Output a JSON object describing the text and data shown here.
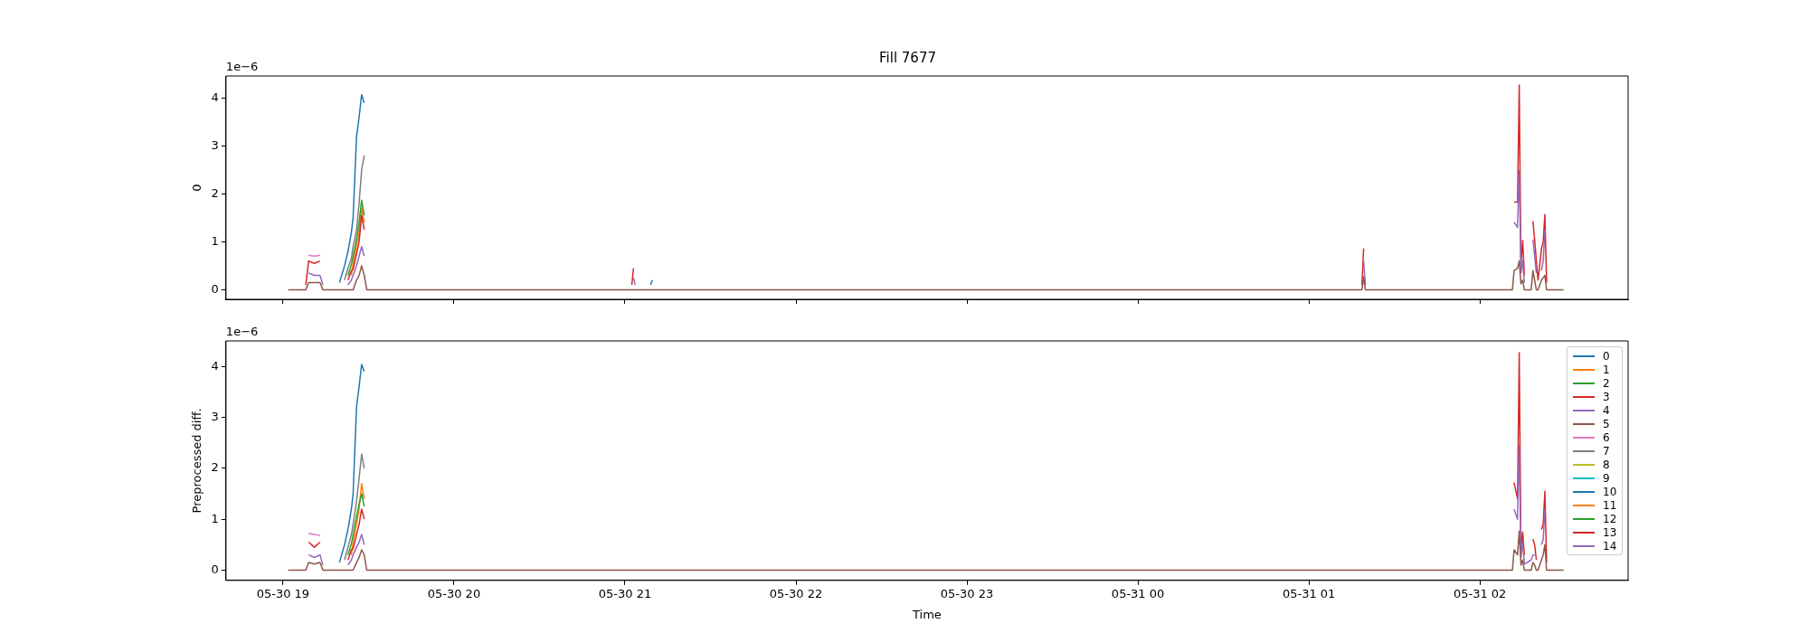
{
  "chart_data": [
    {
      "type": "line",
      "title": "Fill 7677",
      "ylabel": "0",
      "annotations": [
        "1e−6"
      ],
      "tick_labels": "y",
      "x": [
        "--05-30T19:01:48",
        "--05-30T19:08:00",
        "--05-30T19:09:00",
        "--05-30T19:11:00",
        "--05-30T19:13:00",
        "--05-30T19:14:00",
        "--05-30T19:18:00",
        "--05-30T19:19:48",
        "--05-30T19:21:36",
        "--05-30T19:22:48",
        "--05-30T19:24:00",
        "--05-30T19:24:36",
        "--05-30T19:25:48",
        "--05-30T19:26:42",
        "--05-30T19:27:36",
        "--05-30T19:28:30",
        "--05-30T19:29:24",
        "--05-30T19:30:00",
        "--05-30T21:02:24",
        "--05-30T21:03:00",
        "--05-30T21:03:36",
        "--05-30T21:09:00",
        "--05-30T21:09:36",
        "--05-30T21:10:12",
        "--05-31T01:18:36",
        "--05-31T01:19:12",
        "--05-31T01:19:48",
        "--05-31T02:11:24",
        "--05-31T02:12:00",
        "--05-31T02:13:12",
        "--05-31T02:13:48",
        "--05-31T02:14:24",
        "--05-31T02:15:00",
        "--05-31T02:15:36",
        "--05-31T02:18:00",
        "--05-31T02:18:36",
        "--05-31T02:19:12",
        "--05-31T02:19:48",
        "--05-31T02:20:24",
        "--05-31T02:21:36",
        "--05-31T02:22:12",
        "--05-31T02:22:48",
        "--05-31T02:23:24",
        "--05-31T02:29:24"
      ],
      "xlim": [
        "--05-30T18:40",
        "--05-31T02:52"
      ],
      "xticks": [
        {
          "value": "--05-30T19:00",
          "label": null
        },
        {
          "value": "--05-30T20:00",
          "label": null
        },
        {
          "value": "--05-30T21:00",
          "label": null
        },
        {
          "value": "--05-30T22:00",
          "label": null
        },
        {
          "value": "--05-30T23:00",
          "label": null
        },
        {
          "value": "--05-31T00:00",
          "label": null
        },
        {
          "value": "--05-31T01:00",
          "label": null
        },
        {
          "value": "--05-31T02:00",
          "label": null
        }
      ],
      "ylim": [
        -0.2,
        4.46
      ],
      "yticks": [
        0,
        1,
        2,
        3,
        4
      ],
      "series": [
        {
          "color": "#1f77b4",
          "values": [
            null,
            null,
            null,
            null,
            null,
            null,
            null,
            0.15,
            0.5,
            0.8,
            1.2,
            1.5,
            3.2,
            3.6,
            4.07,
            3.9,
            null,
            null,
            null,
            null,
            null,
            0.1,
            0.2,
            null,
            null,
            null,
            null,
            null,
            null,
            null,
            null,
            null,
            null,
            null,
            null,
            null,
            null,
            null,
            null,
            null,
            null,
            null,
            null,
            null
          ]
        },
        {
          "color": "#ff7f0e",
          "values": [
            null,
            null,
            null,
            null,
            null,
            null,
            null,
            null,
            null,
            null,
            0.3,
            0.55,
            0.9,
            1.2,
            1.7,
            1.4,
            null,
            null,
            null,
            null,
            null,
            null,
            null,
            null,
            null,
            null,
            null,
            null,
            null,
            null,
            null,
            null,
            null,
            null,
            null,
            null,
            null,
            null,
            null,
            null,
            null,
            null,
            null,
            null
          ]
        },
        {
          "color": "#2ca02c",
          "values": [
            null,
            null,
            null,
            null,
            null,
            null,
            null,
            null,
            null,
            0.3,
            0.52,
            0.7,
            1.05,
            1.4,
            1.87,
            1.55,
            null,
            null,
            null,
            null,
            null,
            null,
            null,
            null,
            null,
            null,
            null,
            null,
            null,
            null,
            null,
            null,
            null,
            null,
            null,
            null,
            null,
            null,
            null,
            null,
            null,
            null,
            null,
            null
          ]
        },
        {
          "color": "#d62728",
          "values": [
            null,
            0.1,
            0.6,
            0.55,
            0.6,
            null,
            null,
            null,
            null,
            0.2,
            0.4,
            0.42,
            0.75,
            1.0,
            1.55,
            1.25,
            null,
            null,
            0.1,
            0.45,
            null,
            null,
            null,
            null,
            0.1,
            0.86,
            null,
            null,
            1.83,
            1.83,
            4.27,
            0.5,
            1.03,
            0.3,
            null,
            1.43,
            1.05,
            0.6,
            0.2,
            0.85,
            1.0,
            1.57,
            0.15,
            null
          ]
        },
        {
          "color": "#9467bd",
          "values": [
            null,
            null,
            0.35,
            0.3,
            0.3,
            0.1,
            null,
            null,
            null,
            0.1,
            0.2,
            0.3,
            0.5,
            0.7,
            0.9,
            0.7,
            null,
            null,
            null,
            0.25,
            0.1,
            null,
            null,
            null,
            null,
            0.59,
            0.1,
            null,
            1.41,
            1.3,
            2.48,
            0.35,
            0.6,
            0.15,
            null,
            1.05,
            0.7,
            0.35,
            null,
            0.4,
            0.6,
            1.24,
            null,
            null
          ]
        },
        {
          "color": "#8c564b",
          "values": [
            0,
            0,
            0.15,
            0.15,
            0.15,
            0,
            0,
            0,
            0,
            0,
            0,
            0,
            0.2,
            0.3,
            0.5,
            0.3,
            0,
            0,
            0,
            0,
            0,
            0,
            0,
            0,
            0,
            0.27,
            0,
            0,
            0.4,
            0.45,
            0.6,
            0.12,
            0.2,
            0,
            0,
            0.4,
            0.2,
            0,
            0,
            0.2,
            0.25,
            0.3,
            0,
            0
          ]
        },
        {
          "color": "#e377c2",
          "values": [
            null,
            null,
            0.72,
            0.7,
            0.72,
            null,
            null,
            null,
            null,
            null,
            null,
            null,
            null,
            null,
            null,
            null,
            null,
            null,
            null,
            null,
            null,
            null,
            null,
            null,
            null,
            null,
            null,
            null,
            null,
            null,
            null,
            null,
            null,
            null,
            null,
            null,
            null,
            null,
            null,
            null,
            null,
            null,
            null,
            null
          ]
        },
        {
          "color": "#7f7f7f",
          "values": [
            null,
            null,
            null,
            null,
            null,
            null,
            null,
            null,
            0.2,
            0.45,
            0.65,
            0.9,
            1.25,
            1.8,
            2.5,
            2.8,
            null,
            null,
            null,
            null,
            null,
            null,
            null,
            null,
            null,
            null,
            null,
            null,
            null,
            null,
            null,
            null,
            null,
            null,
            null,
            null,
            null,
            null,
            null,
            null,
            null,
            null,
            null,
            null
          ]
        },
        {
          "color": "#bcbd22",
          "values": [
            null,
            null,
            null,
            null,
            null,
            null,
            null,
            null,
            null,
            null,
            null,
            null,
            null,
            null,
            null,
            null,
            null,
            null,
            null,
            null,
            null,
            null,
            null,
            null,
            null,
            null,
            null,
            null,
            null,
            null,
            null,
            null,
            null,
            null,
            null,
            null,
            null,
            null,
            null,
            null,
            null,
            null,
            null,
            null
          ]
        },
        {
          "color": "#17becf",
          "values": [
            null,
            null,
            null,
            null,
            null,
            null,
            null,
            null,
            null,
            null,
            null,
            null,
            null,
            null,
            null,
            null,
            null,
            null,
            null,
            null,
            null,
            null,
            null,
            null,
            null,
            null,
            null,
            null,
            null,
            null,
            null,
            null,
            null,
            null,
            null,
            null,
            null,
            null,
            null,
            null,
            null,
            null,
            null,
            null
          ]
        },
        {
          "color": "#1f77b4",
          "values": [
            null,
            null,
            null,
            null,
            null,
            null,
            null,
            null,
            null,
            null,
            null,
            null,
            null,
            null,
            null,
            null,
            null,
            null,
            null,
            null,
            null,
            null,
            null,
            null,
            null,
            null,
            null,
            null,
            null,
            null,
            null,
            null,
            null,
            null,
            null,
            null,
            null,
            null,
            null,
            null,
            null,
            null,
            null,
            null
          ]
        },
        {
          "color": "#ff7f0e",
          "values": [
            null,
            null,
            null,
            null,
            null,
            null,
            null,
            null,
            null,
            null,
            null,
            null,
            null,
            null,
            null,
            null,
            null,
            null,
            null,
            null,
            null,
            null,
            null,
            null,
            null,
            null,
            null,
            null,
            null,
            null,
            null,
            null,
            null,
            null,
            null,
            null,
            null,
            null,
            null,
            null,
            null,
            null,
            null,
            null
          ]
        },
        {
          "color": "#2ca02c",
          "values": [
            null,
            null,
            null,
            null,
            null,
            null,
            null,
            null,
            null,
            null,
            null,
            null,
            null,
            null,
            null,
            null,
            null,
            null,
            null,
            null,
            null,
            null,
            null,
            null,
            null,
            null,
            null,
            null,
            null,
            null,
            null,
            null,
            null,
            null,
            null,
            null,
            null,
            null,
            null,
            null,
            null,
            null,
            null,
            null
          ]
        },
        {
          "color": "#d62728",
          "values": [
            null,
            null,
            null,
            null,
            null,
            null,
            null,
            null,
            null,
            null,
            null,
            null,
            null,
            null,
            null,
            null,
            null,
            null,
            null,
            null,
            null,
            null,
            null,
            null,
            null,
            null,
            null,
            null,
            null,
            null,
            null,
            null,
            null,
            null,
            null,
            null,
            null,
            null,
            null,
            null,
            null,
            null,
            null,
            null
          ]
        },
        {
          "color": "#9467bd",
          "values": [
            null,
            null,
            null,
            null,
            null,
            null,
            null,
            null,
            null,
            null,
            null,
            null,
            null,
            null,
            null,
            null,
            null,
            null,
            null,
            null,
            null,
            null,
            null,
            null,
            null,
            null,
            null,
            null,
            null,
            null,
            null,
            null,
            null,
            null,
            null,
            null,
            null,
            null,
            null,
            null,
            null,
            null,
            null,
            null
          ]
        }
      ]
    },
    {
      "type": "line",
      "xlabel": "Time",
      "ylabel": "Preprocessed diff.",
      "annotations": [
        "1e−6"
      ],
      "legend": "top right",
      "x": [
        "--05-30T19:01:48",
        "--05-30T19:08:00",
        "--05-30T19:09:00",
        "--05-30T19:11:00",
        "--05-30T19:13:00",
        "--05-30T19:14:00",
        "--05-30T19:18:00",
        "--05-30T19:19:48",
        "--05-30T19:21:36",
        "--05-30T19:22:48",
        "--05-30T19:24:00",
        "--05-30T19:24:36",
        "--05-30T19:25:48",
        "--05-30T19:26:42",
        "--05-30T19:27:36",
        "--05-30T19:28:30",
        "--05-30T19:29:24",
        "--05-30T19:30:00",
        "--05-30T21:02:24",
        "--05-30T21:03:00",
        "--05-30T21:03:36",
        "--05-30T21:09:00",
        "--05-30T21:09:36",
        "--05-30T21:10:12",
        "--05-31T01:18:36",
        "--05-31T01:19:12",
        "--05-31T01:19:48",
        "--05-31T02:11:24",
        "--05-31T02:12:00",
        "--05-31T02:13:12",
        "--05-31T02:13:48",
        "--05-31T02:14:24",
        "--05-31T02:15:00",
        "--05-31T02:15:36",
        "--05-31T02:18:00",
        "--05-31T02:18:36",
        "--05-31T02:19:12",
        "--05-31T02:19:48",
        "--05-31T02:20:24",
        "--05-31T02:21:36",
        "--05-31T02:22:12",
        "--05-31T02:22:48",
        "--05-31T02:23:24",
        "--05-31T02:29:24"
      ],
      "xlim": [
        "--05-30T18:40",
        "--05-31T02:52"
      ],
      "xticks": [
        {
          "value": "--05-30T19:00",
          "label": "05-30 19"
        },
        {
          "value": "--05-30T20:00",
          "label": "05-30 20"
        },
        {
          "value": "--05-30T21:00",
          "label": "05-30 21"
        },
        {
          "value": "--05-30T22:00",
          "label": "05-30 22"
        },
        {
          "value": "--05-30T23:00",
          "label": "05-30 23"
        },
        {
          "value": "--05-31T00:00",
          "label": "05-31 00"
        },
        {
          "value": "--05-31T01:00",
          "label": "05-31 01"
        },
        {
          "value": "--05-31T02:00",
          "label": "05-31 02"
        }
      ],
      "ylim": [
        -0.2,
        4.5
      ],
      "yticks": [
        0,
        1,
        2,
        3,
        4
      ],
      "series": [
        {
          "name": "0",
          "color": "#1f77b4",
          "values": [
            null,
            null,
            null,
            null,
            null,
            null,
            null,
            0.15,
            0.5,
            0.8,
            1.2,
            1.5,
            3.2,
            3.6,
            4.04,
            3.9,
            null,
            null,
            null,
            null,
            null,
            null,
            null,
            null,
            null,
            null,
            null,
            null,
            null,
            null,
            null,
            null,
            null,
            null,
            null,
            null,
            null,
            null,
            null,
            null,
            null,
            null,
            null,
            null
          ]
        },
        {
          "name": "1",
          "color": "#ff7f0e",
          "values": [
            null,
            null,
            null,
            null,
            null,
            null,
            null,
            null,
            null,
            null,
            0.3,
            0.55,
            0.9,
            1.2,
            1.7,
            1.4,
            null,
            null,
            null,
            null,
            null,
            null,
            null,
            null,
            null,
            null,
            null,
            null,
            null,
            null,
            null,
            null,
            null,
            null,
            null,
            null,
            null,
            null,
            null,
            null,
            null,
            null,
            null,
            null
          ]
        },
        {
          "name": "2",
          "color": "#2ca02c",
          "values": [
            null,
            null,
            null,
            null,
            null,
            null,
            null,
            null,
            null,
            0.3,
            0.52,
            0.7,
            1.05,
            1.3,
            1.5,
            1.25,
            null,
            null,
            null,
            null,
            null,
            null,
            null,
            null,
            null,
            null,
            null,
            null,
            null,
            null,
            null,
            null,
            null,
            null,
            null,
            null,
            null,
            null,
            null,
            null,
            null,
            null,
            null,
            null
          ]
        },
        {
          "name": "3",
          "color": "#d62728",
          "values": [
            null,
            null,
            0.55,
            0.45,
            0.55,
            null,
            null,
            null,
            null,
            0.2,
            0.4,
            0.42,
            0.7,
            0.9,
            1.2,
            1.0,
            null,
            null,
            null,
            null,
            null,
            null,
            null,
            null,
            null,
            null,
            null,
            null,
            1.72,
            1.4,
            4.27,
            0.4,
            0.75,
            0.3,
            null,
            0.61,
            0.5,
            0.2,
            null,
            0.8,
            0.9,
            1.55,
            0.15,
            null
          ]
        },
        {
          "name": "4",
          "color": "#9467bd",
          "values": [
            null,
            null,
            0.3,
            0.25,
            0.3,
            0.1,
            null,
            null,
            null,
            0.1,
            0.2,
            0.3,
            0.45,
            0.55,
            0.7,
            0.5,
            null,
            null,
            null,
            null,
            null,
            null,
            null,
            null,
            null,
            null,
            null,
            null,
            1.2,
            1.0,
            2.45,
            0.25,
            0.55,
            0.12,
            0.2,
            0.3,
            0.3,
            null,
            null,
            0.5,
            0.6,
            1.2,
            null,
            null
          ]
        },
        {
          "name": "5",
          "color": "#8c564b",
          "values": [
            0,
            0,
            0.15,
            0.12,
            0.15,
            0,
            0,
            0,
            0,
            0,
            0,
            0,
            0.15,
            0.25,
            0.4,
            0.3,
            0,
            0,
            0,
            0,
            0,
            0,
            0,
            0,
            0,
            0,
            0,
            0,
            0.4,
            0.3,
            0.77,
            0.1,
            0.2,
            0,
            0,
            0.15,
            0.1,
            0,
            0,
            0.2,
            0.3,
            0.5,
            0,
            0
          ]
        },
        {
          "name": "6",
          "color": "#e377c2",
          "values": [
            null,
            null,
            0.72,
            0.7,
            0.68,
            null,
            null,
            null,
            null,
            null,
            null,
            null,
            null,
            null,
            null,
            null,
            null,
            null,
            null,
            null,
            null,
            null,
            null,
            null,
            null,
            null,
            null,
            null,
            null,
            null,
            null,
            null,
            null,
            null,
            null,
            null,
            null,
            null,
            null,
            null,
            null,
            null,
            null,
            null
          ]
        },
        {
          "name": "7",
          "color": "#7f7f7f",
          "values": [
            null,
            null,
            null,
            null,
            null,
            null,
            null,
            null,
            0.2,
            0.45,
            0.7,
            0.9,
            1.35,
            1.8,
            2.28,
            2.0,
            null,
            null,
            null,
            null,
            null,
            null,
            null,
            null,
            null,
            null,
            null,
            null,
            null,
            null,
            null,
            null,
            null,
            null,
            null,
            null,
            null,
            null,
            null,
            null,
            null,
            null,
            null,
            null
          ]
        },
        {
          "name": "8",
          "color": "#bcbd22",
          "values": [
            null,
            null,
            null,
            null,
            null,
            null,
            null,
            null,
            null,
            null,
            null,
            null,
            null,
            null,
            null,
            null,
            null,
            null,
            null,
            null,
            null,
            null,
            null,
            null,
            null,
            null,
            null,
            null,
            null,
            null,
            null,
            null,
            null,
            null,
            null,
            null,
            null,
            null,
            null,
            null,
            null,
            null,
            null,
            null
          ]
        },
        {
          "name": "9",
          "color": "#17becf",
          "values": [
            null,
            null,
            null,
            null,
            null,
            null,
            null,
            null,
            null,
            null,
            null,
            null,
            null,
            null,
            null,
            null,
            null,
            null,
            null,
            null,
            null,
            null,
            null,
            null,
            null,
            null,
            null,
            null,
            null,
            null,
            null,
            null,
            null,
            null,
            null,
            null,
            null,
            null,
            null,
            null,
            null,
            null,
            null,
            null
          ]
        },
        {
          "name": "10",
          "color": "#1f77b4",
          "values": [
            null,
            null,
            null,
            null,
            null,
            null,
            null,
            null,
            null,
            null,
            null,
            null,
            null,
            null,
            null,
            null,
            null,
            null,
            null,
            null,
            null,
            null,
            null,
            null,
            null,
            null,
            null,
            null,
            null,
            null,
            null,
            null,
            null,
            null,
            null,
            null,
            null,
            null,
            null,
            null,
            null,
            null,
            null,
            null
          ]
        },
        {
          "name": "11",
          "color": "#ff7f0e",
          "values": [
            null,
            null,
            null,
            null,
            null,
            null,
            null,
            null,
            null,
            null,
            null,
            null,
            null,
            null,
            null,
            null,
            null,
            null,
            null,
            null,
            null,
            null,
            null,
            null,
            null,
            null,
            null,
            null,
            null,
            null,
            null,
            null,
            null,
            null,
            null,
            null,
            null,
            null,
            null,
            null,
            null,
            null,
            null,
            null
          ]
        },
        {
          "name": "12",
          "color": "#2ca02c",
          "values": [
            null,
            null,
            null,
            null,
            null,
            null,
            null,
            null,
            null,
            null,
            null,
            null,
            null,
            null,
            null,
            null,
            null,
            null,
            null,
            null,
            null,
            null,
            null,
            null,
            null,
            null,
            null,
            null,
            null,
            null,
            null,
            null,
            null,
            null,
            null,
            null,
            null,
            null,
            null,
            null,
            null,
            null,
            null,
            null
          ]
        },
        {
          "name": "13",
          "color": "#d62728",
          "values": [
            null,
            null,
            null,
            null,
            null,
            null,
            null,
            null,
            null,
            null,
            null,
            null,
            null,
            null,
            null,
            null,
            null,
            null,
            null,
            null,
            null,
            null,
            null,
            null,
            null,
            null,
            null,
            null,
            null,
            null,
            null,
            null,
            null,
            null,
            null,
            null,
            null,
            null,
            null,
            null,
            null,
            null,
            null,
            null
          ]
        },
        {
          "name": "14",
          "color": "#9467bd",
          "values": [
            null,
            null,
            null,
            null,
            null,
            null,
            null,
            null,
            null,
            null,
            null,
            null,
            null,
            null,
            null,
            null,
            null,
            null,
            null,
            null,
            null,
            null,
            null,
            null,
            null,
            null,
            null,
            null,
            null,
            null,
            null,
            null,
            null,
            null,
            null,
            null,
            null,
            null,
            null,
            null,
            null,
            null,
            null,
            null
          ]
        }
      ]
    }
  ]
}
